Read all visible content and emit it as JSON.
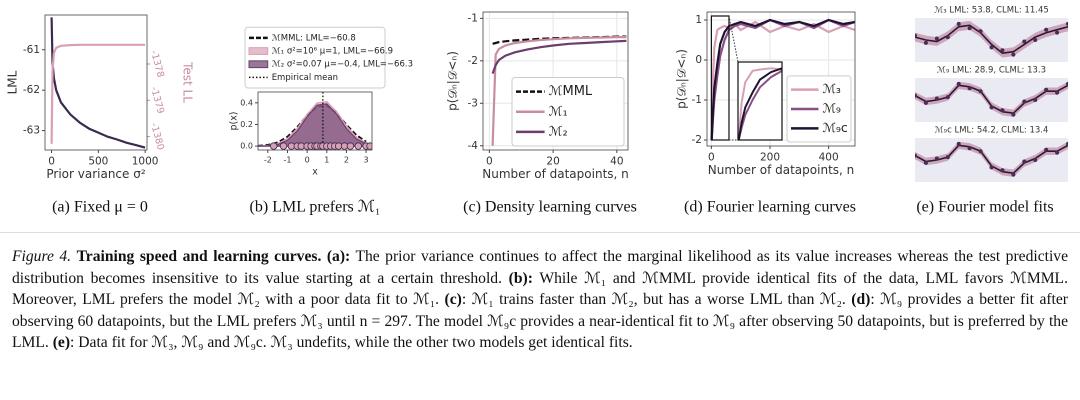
{
  "chart_data": [
    {
      "type": "line",
      "xlabel": "Prior variance σ²",
      "ylabel": "LML",
      "y2label": "Test LL",
      "x": [
        1,
        10,
        25,
        50,
        100,
        200,
        300,
        400,
        500,
        600,
        700,
        800,
        900,
        1000
      ],
      "series": [
        {
          "color": "#3b2a4f",
          "values": [
            -60.2,
            -61.3,
            -61.7,
            -62.0,
            -62.3,
            -62.6,
            -62.8,
            -62.95,
            -63.05,
            -63.15,
            -63.22,
            -63.3,
            -63.36,
            -63.42
          ]
        },
        {
          "color": "#d9a0b5",
          "axis": "y2",
          "values": [
            -1380.2,
            -1378.2,
            -1377.7,
            -1377.55,
            -1377.5,
            -1377.48,
            -1377.47,
            -1377.47,
            -1377.47,
            -1377.47,
            -1377.47,
            -1377.47,
            -1377.47,
            -1377.47
          ]
        }
      ],
      "xlim": [
        -70,
        1020
      ],
      "xticks": [
        0,
        500,
        1000
      ],
      "ylim": [
        -63.48,
        -60.14
      ],
      "yticks": [
        -63,
        -62,
        -61
      ],
      "y2lim": [
        -1380.37,
        -1376.65
      ],
      "y2ticks": [
        -1380,
        -1379,
        -1378
      ],
      "y2color": "#c98ca5",
      "grid": false
    },
    {
      "type": "density",
      "xlabel": "x",
      "ylabel": "p(x)",
      "x": [
        -2.5,
        -2,
        -1.5,
        -1,
        -0.5,
        0,
        0.5,
        1,
        1.5,
        2,
        2.5,
        3
      ],
      "series": [
        {
          "name": "ℳMML: LML=−60.8",
          "color": "#111111",
          "style": "dashed",
          "values": [
            0.003,
            0.011,
            0.034,
            0.087,
            0.177,
            0.284,
            0.365,
            0.373,
            0.304,
            0.198,
            0.103,
            0.042
          ]
        },
        {
          "name": "ℳ₁ σ²=10⁶ μ=1, LML=−66.9",
          "color": "#d9a0b5",
          "fill": true,
          "values": [
            0.001,
            0.005,
            0.022,
            0.07,
            0.165,
            0.294,
            0.399,
            0.411,
            0.32,
            0.189,
            0.085,
            0.029
          ]
        },
        {
          "name": "ℳ₂ σ²=0.07 μ=−0.4, LML=−66.3",
          "color": "#6b3e6e",
          "fill": true,
          "values": [
            0.0,
            0.003,
            0.015,
            0.054,
            0.141,
            0.27,
            0.378,
            0.39,
            0.296,
            0.164,
            0.067,
            0.02
          ]
        }
      ],
      "mean": {
        "name": "Empirical mean",
        "value": 0.8
      },
      "points": {
        "color": "#d9a0b5",
        "x": [
          -1.7,
          -1.2,
          -0.8,
          -0.5,
          -0.3,
          0.0,
          0.2,
          0.4,
          0.5,
          0.7,
          0.8,
          1.0,
          1.2,
          1.4,
          1.6,
          1.9,
          2.2,
          2.6,
          3.0,
          3.2
        ]
      },
      "xlim": [
        -2.5,
        3.3
      ],
      "xticks": [
        -2,
        -1,
        0,
        1,
        2,
        3
      ],
      "ylim": [
        -0.036,
        0.5
      ],
      "yticks": [
        {
          "value": 0,
          "label": "0.0"
        },
        {
          "value": 0.2,
          "label": "0.2"
        },
        {
          "value": 0.4,
          "label": "0.4"
        }
      ],
      "legend": "above",
      "grid": false
    },
    {
      "type": "line",
      "xlabel": "Number of datapoints, n",
      "ylabel": "p(𝒟ₙ|𝒟<ₙ)",
      "x": [
        1,
        2,
        3,
        5,
        8,
        12,
        16,
        20,
        25,
        30,
        35,
        40,
        43
      ],
      "series": [
        {
          "name": "ℳMML",
          "color": "#111111",
          "style": "dashed",
          "values": [
            -1.6,
            -1.58,
            -1.56,
            -1.54,
            -1.52,
            -1.5,
            -1.48,
            -1.47,
            -1.46,
            -1.45,
            -1.44,
            -1.43,
            -1.43
          ]
        },
        {
          "name": "ℳ₁",
          "color": "#c98ca5",
          "values": [
            -4.0,
            -1.85,
            -1.72,
            -1.64,
            -1.58,
            -1.54,
            -1.51,
            -1.49,
            -1.47,
            -1.46,
            -1.45,
            -1.44,
            -1.44
          ]
        },
        {
          "name": "ℳ₂",
          "color": "#6b3e6e",
          "values": [
            -2.3,
            -2.1,
            -1.98,
            -1.88,
            -1.8,
            -1.73,
            -1.68,
            -1.64,
            -1.6,
            -1.58,
            -1.56,
            -1.54,
            -1.53
          ]
        }
      ],
      "xlim": [
        -2,
        43.5
      ],
      "xticks": [
        0,
        20,
        40
      ],
      "ylim": [
        -4.1,
        -0.85
      ],
      "yticks": [
        -4,
        -3,
        -2,
        -1
      ],
      "legend": "lower right",
      "grid": true
    },
    {
      "type": "line",
      "xlabel": "Number of datapoints, n",
      "ylabel": "p(𝒟ₙ|𝒟<ₙ)",
      "x": [
        1,
        5,
        10,
        20,
        30,
        45,
        60,
        80,
        100,
        150,
        200,
        250,
        300,
        350,
        400,
        450,
        490
      ],
      "series": [
        {
          "name": "ℳ₃",
          "color": "#d9a0b5",
          "values": [
            -1.9,
            -0.5,
            0.3,
            0.75,
            0.8,
            0.85,
            0.8,
            0.9,
            0.75,
            0.95,
            0.7,
            0.85,
            0.75,
            0.9,
            0.7,
            0.85,
            0.75
          ]
        },
        {
          "name": "ℳ₉",
          "color": "#8a4f86",
          "values": [
            -2.0,
            -1.5,
            -1.0,
            -0.4,
            0.1,
            0.5,
            0.75,
            0.85,
            0.9,
            0.8,
            1.0,
            0.85,
            0.95,
            0.8,
            1.0,
            0.85,
            0.95
          ]
        },
        {
          "name": "ℳ₉c",
          "color": "#1e1432",
          "values": [
            -2.0,
            -1.3,
            -0.7,
            -0.1,
            0.4,
            0.7,
            0.85,
            0.9,
            0.95,
            0.85,
            1.0,
            0.9,
            0.95,
            0.85,
            1.0,
            0.9,
            0.95
          ]
        }
      ],
      "xlim": [
        -15,
        490
      ],
      "xticks": [
        0,
        200,
        400
      ],
      "ylim": [
        -2.15,
        1.2
      ],
      "yticks": [
        -2,
        -1,
        0,
        1
      ],
      "inset": {
        "xlim": [
          0,
          60
        ],
        "ylim": [
          -2,
          1.1
        ]
      },
      "legend": "lower right",
      "grid": true
    },
    {
      "type": "fits",
      "x": [
        0,
        1,
        2,
        3,
        4,
        5,
        6,
        7,
        8,
        9,
        10,
        11,
        12,
        13,
        14
      ],
      "xlim": [
        0,
        14
      ],
      "ylim": [
        -1.5,
        1.5
      ],
      "band_color": "#c99ab0",
      "line_color": "#2a1a3a",
      "point_color": "#4a2c55",
      "panels": [
        {
          "title": "ℳ₃ LML: 53.8, CLML: 11.45",
          "std": 0.3,
          "fit": [
            0.2,
            0.0,
            -0.1,
            0.3,
            0.9,
            1.0,
            0.5,
            -0.3,
            -0.9,
            -0.8,
            -0.3,
            0.2,
            0.5,
            0.7,
            0.9
          ],
          "points": [
            0.3,
            -0.2,
            0.1,
            0.2,
            1.1,
            0.8,
            0.6,
            -0.5,
            -0.7,
            -1.0,
            -0.1,
            0.0,
            0.7,
            0.5,
            1.1
          ]
        },
        {
          "title": "ℳ₉ LML: 28.9, CLML: 13.3",
          "std": 0.25,
          "fit": [
            0.3,
            -0.1,
            0.0,
            0.2,
            1.0,
            0.9,
            0.6,
            -0.4,
            -0.8,
            -0.9,
            -0.2,
            0.1,
            0.6,
            0.6,
            1.0
          ],
          "points": [
            0.3,
            -0.2,
            0.1,
            0.2,
            1.1,
            0.8,
            0.6,
            -0.5,
            -0.7,
            -1.0,
            -0.1,
            0.0,
            0.7,
            0.5,
            1.1
          ]
        },
        {
          "title": "ℳ₉c LML: 54.2, CLML: 13.4",
          "std": 0.25,
          "fit": [
            0.3,
            -0.1,
            0.0,
            0.2,
            1.0,
            0.9,
            0.6,
            -0.4,
            -0.8,
            -0.9,
            -0.2,
            0.1,
            0.6,
            0.6,
            1.0
          ],
          "points": [
            0.3,
            -0.2,
            0.1,
            0.2,
            1.1,
            0.8,
            0.6,
            -0.5,
            -0.7,
            -1.0,
            -0.1,
            0.0,
            0.7,
            0.5,
            1.1
          ]
        }
      ]
    }
  ],
  "subcaptions": [
    "(a) Fixed μ = 0",
    "(b) LML prefers ℳ₁",
    "(c) Density learning curves",
    "(d) Fourier learning curves",
    "(e) Fourier model fits"
  ],
  "caption": {
    "label": "Figure 4.",
    "runs": [
      {
        "text": " "
      },
      {
        "text": "Training speed and learning curves. (a):",
        "bold": true
      },
      {
        "text": " The prior variance continues to affect the marginal likelihood as its value increases whereas the test predictive distribution becomes insensitive to its value starting at a certain threshold. "
      },
      {
        "text": "(b):",
        "bold": true
      },
      {
        "text": " While ℳ₁ and ℳMML provide identical fits of the data, LML favors ℳMML. Moreover, LML prefers the model ℳ₂ with a poor data fit to ℳ₁. "
      },
      {
        "text": "(c)",
        "bold": true
      },
      {
        "text": ": ℳ₁ trains faster than ℳ₂, but has a worse LML than ℳ₂. "
      },
      {
        "text": "(d)",
        "bold": true
      },
      {
        "text": ": ℳ₉ provides a better fit after observing 60 datapoints, but the LML prefers ℳ₃ until n = 297. The model ℳ₉c provides a near-identical fit to ℳ₉ after observing 50 datapoints, but is preferred by the LML. "
      },
      {
        "text": "(e)",
        "bold": true
      },
      {
        "text": ": Data fit for ℳ₃, ℳ₉ and ℳ₉c. ℳ₃ undefits, while the other two models get identical fits."
      }
    ]
  }
}
